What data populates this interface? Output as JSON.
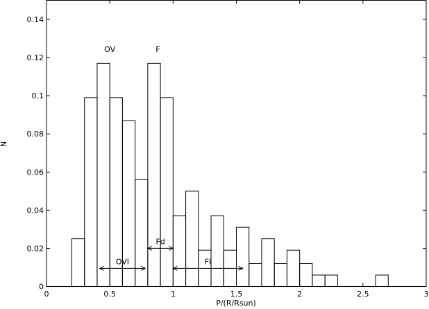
{
  "chart_data": {
    "type": "histogram",
    "title": "",
    "xlabel": "P/(R/Rsun)",
    "ylabel": "N",
    "xlim": [
      0,
      3
    ],
    "ylim": [
      0,
      0.15
    ],
    "grid": false,
    "legend": "none",
    "xticks": [
      0,
      0.5,
      1,
      1.5,
      2,
      2.5,
      3
    ],
    "xtick_labels": [
      "0",
      "0.5",
      "1",
      "1.5",
      "2",
      "2.5",
      "3"
    ],
    "yticks": [
      0,
      0.02,
      0.04,
      0.06,
      0.08,
      0.1,
      0.12,
      0.14
    ],
    "ytick_labels": [
      "0",
      "0.02",
      "0.04",
      "0.06",
      "0.08",
      "0.1",
      "0.12",
      "0.14"
    ],
    "bin_width": 0.1,
    "bins": [
      {
        "x0": 0.2,
        "x1": 0.3,
        "value": 0.025
      },
      {
        "x0": 0.3,
        "x1": 0.4,
        "value": 0.099
      },
      {
        "x0": 0.4,
        "x1": 0.5,
        "value": 0.117
      },
      {
        "x0": 0.5,
        "x1": 0.6,
        "value": 0.099
      },
      {
        "x0": 0.6,
        "x1": 0.7,
        "value": 0.087
      },
      {
        "x0": 0.7,
        "x1": 0.8,
        "value": 0.056
      },
      {
        "x0": 0.8,
        "x1": 0.9,
        "value": 0.117
      },
      {
        "x0": 0.9,
        "x1": 1.0,
        "value": 0.099
      },
      {
        "x0": 1.0,
        "x1": 1.1,
        "value": 0.037
      },
      {
        "x0": 1.1,
        "x1": 1.2,
        "value": 0.05
      },
      {
        "x0": 1.2,
        "x1": 1.3,
        "value": 0.019
      },
      {
        "x0": 1.3,
        "x1": 1.4,
        "value": 0.037
      },
      {
        "x0": 1.4,
        "x1": 1.5,
        "value": 0.019
      },
      {
        "x0": 1.5,
        "x1": 1.6,
        "value": 0.031
      },
      {
        "x0": 1.6,
        "x1": 1.7,
        "value": 0.012
      },
      {
        "x0": 1.7,
        "x1": 1.8,
        "value": 0.025
      },
      {
        "x0": 1.8,
        "x1": 1.9,
        "value": 0.012
      },
      {
        "x0": 1.9,
        "x1": 2.0,
        "value": 0.019
      },
      {
        "x0": 2.0,
        "x1": 2.1,
        "value": 0.012
      },
      {
        "x0": 2.1,
        "x1": 2.2,
        "value": 0.006
      },
      {
        "x0": 2.2,
        "x1": 2.3,
        "value": 0.006
      },
      {
        "x0": 2.3,
        "x1": 2.4,
        "value": 0
      },
      {
        "x0": 2.4,
        "x1": 2.5,
        "value": 0
      },
      {
        "x0": 2.5,
        "x1": 2.6,
        "value": 0
      },
      {
        "x0": 2.6,
        "x1": 2.7,
        "value": 0.006
      }
    ],
    "annotations": [
      {
        "text": "OV",
        "x": 0.5,
        "y": 0.123
      },
      {
        "text": "F",
        "x": 0.88,
        "y": 0.123
      }
    ],
    "ranges": [
      {
        "label": "OVI",
        "x_start": 0.42,
        "x_end": 0.78,
        "y": 0.0095
      },
      {
        "label": "Fd",
        "x_start": 0.8,
        "x_end": 1.0,
        "y": 0.02
      },
      {
        "label": "Fl",
        "x_start": 1.0,
        "x_end": 1.55,
        "y": 0.0095
      }
    ]
  }
}
